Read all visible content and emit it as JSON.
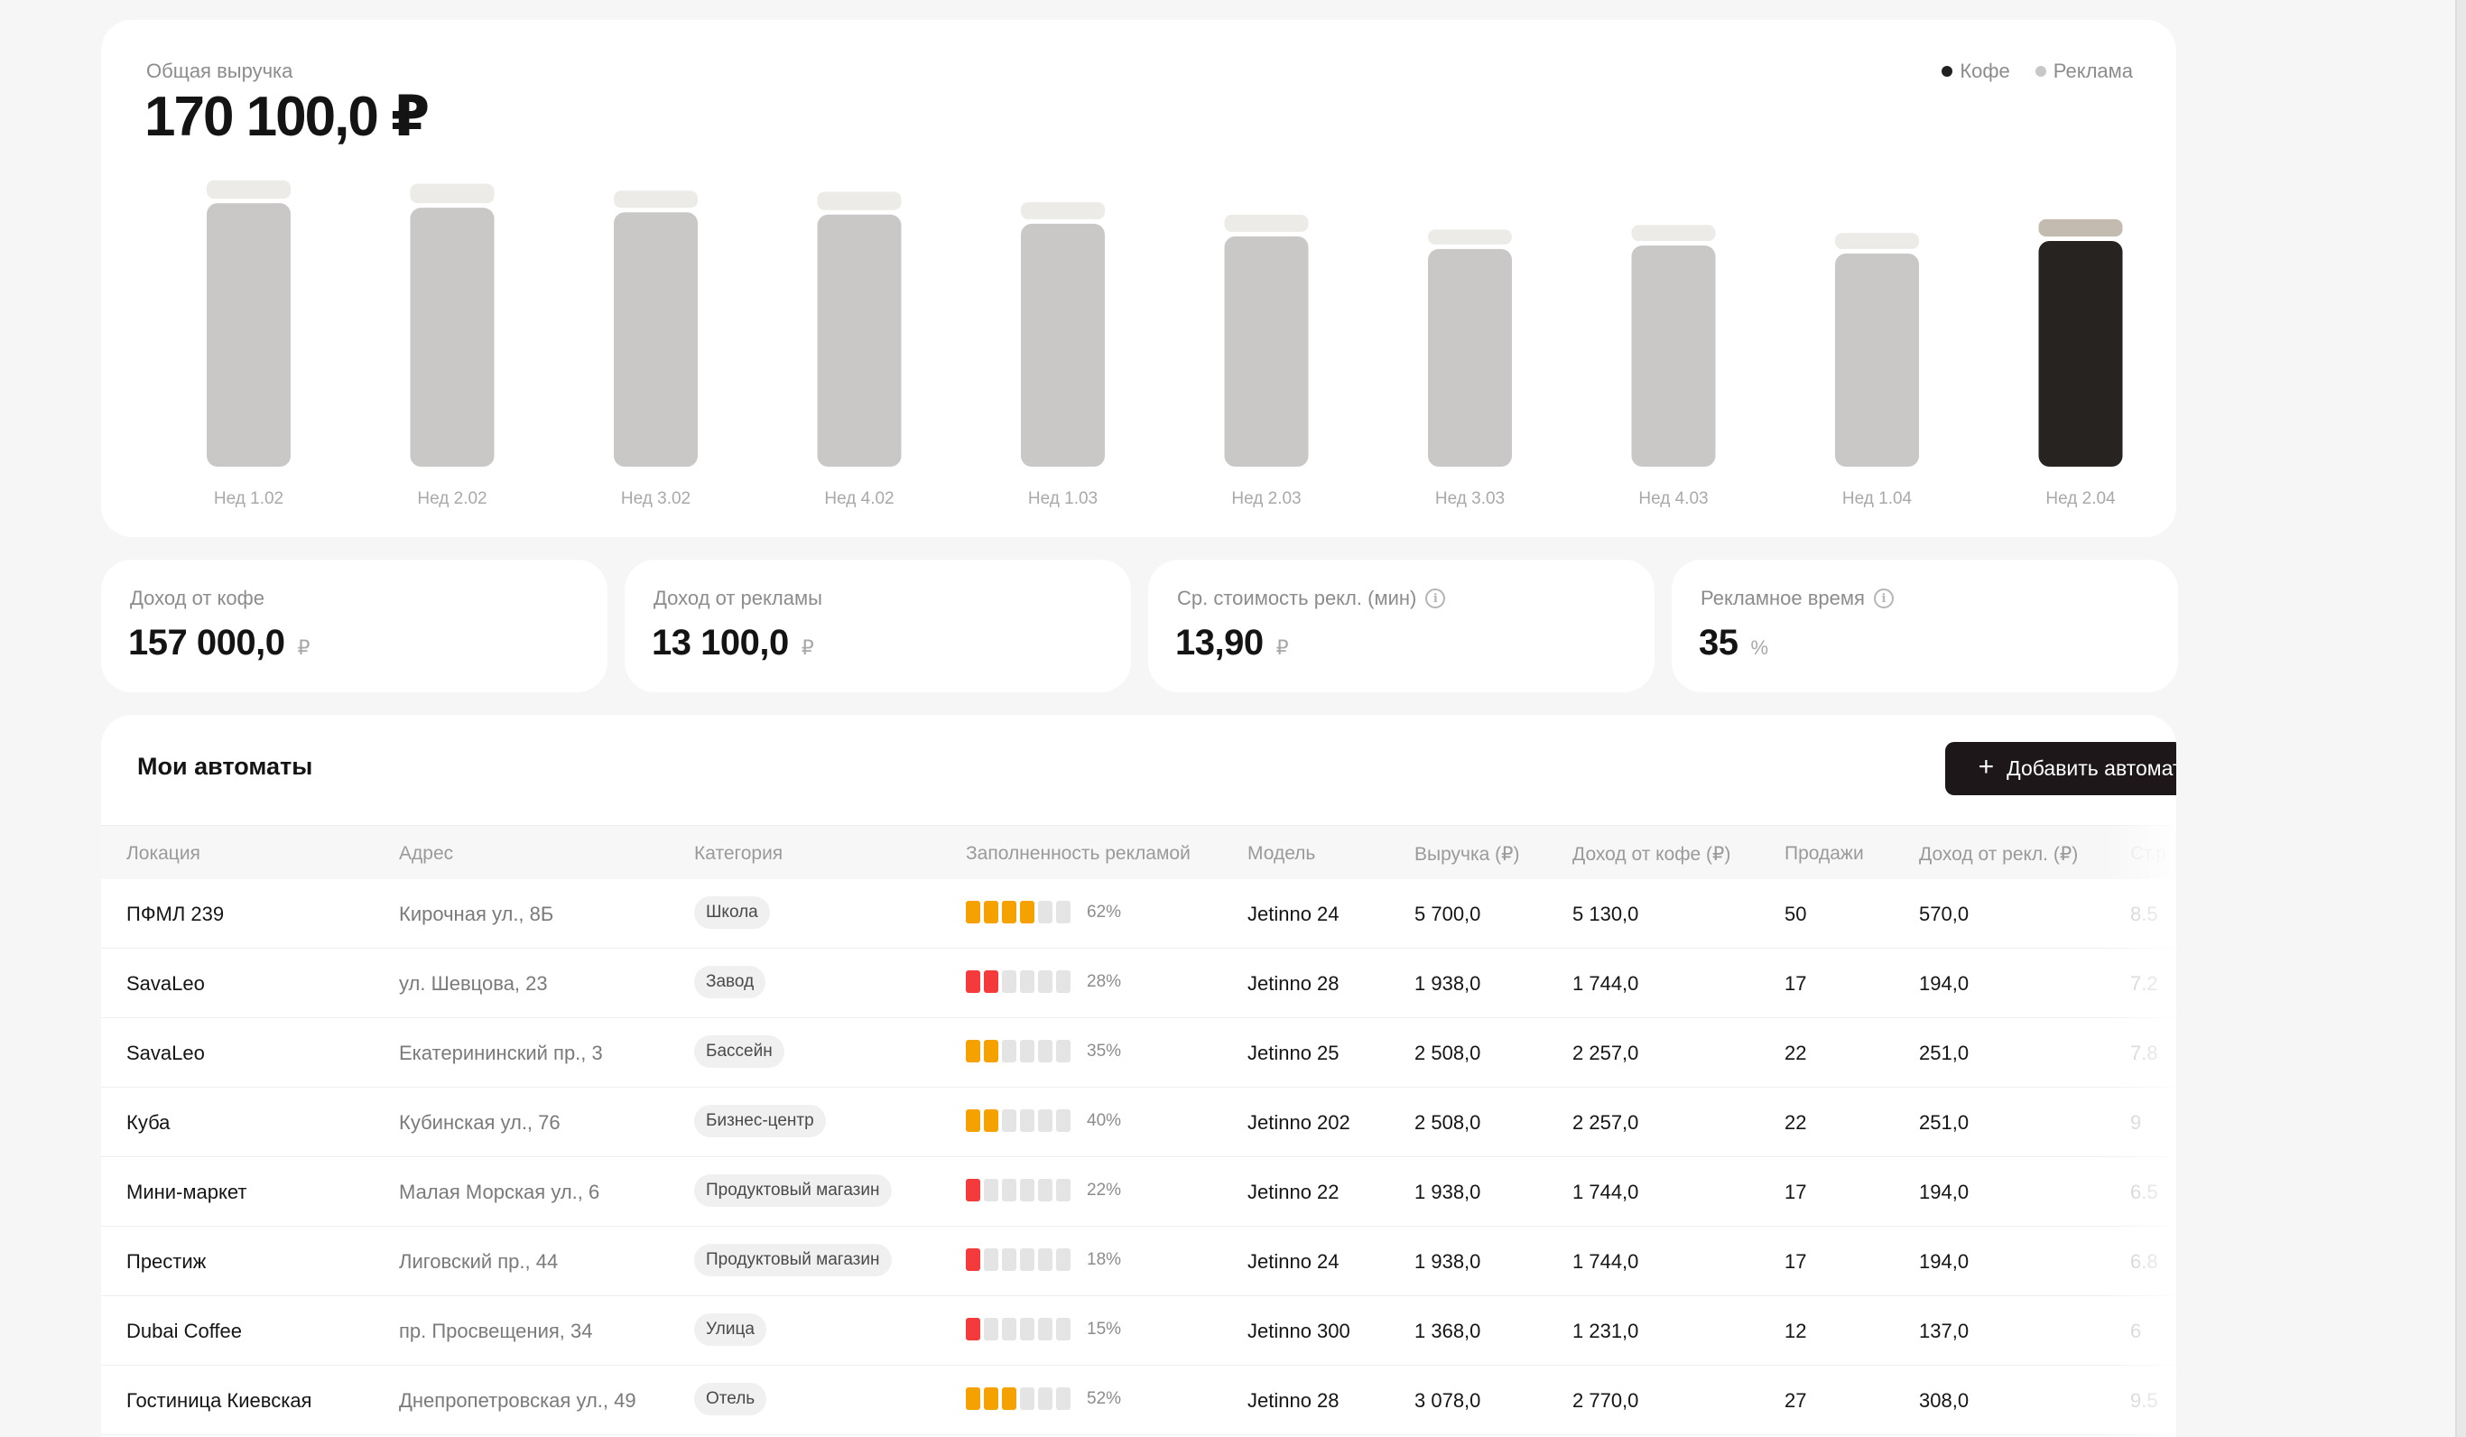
{
  "colors": {
    "coffee_bar": "#c9c8c7",
    "coffee_bar_active": "#272320",
    "ads_bar": "#ecebe8",
    "ads_bar_active": "#c3bbb0",
    "legend_coffee": "#221f1f",
    "legend_ads": "#c7c7c7",
    "fill_orange": "#f5a100",
    "fill_red": "#f43a3a",
    "fill_empty": "#e4e4e4"
  },
  "revenue": {
    "label": "Общая выручка",
    "total": "170 100,0 ₽",
    "legend": [
      {
        "name": "Кофе",
        "icon": "dot-icon"
      },
      {
        "name": "Реклама",
        "icon": "dot-icon"
      }
    ]
  },
  "chart_data": {
    "type": "bar",
    "stacked": true,
    "categories": [
      "Нед 1.02",
      "Нед 2.02",
      "Нед 3.02",
      "Нед 4.02",
      "Нед 1.03",
      "Нед 2.03",
      "Нед 3.03",
      "Нед 4.03",
      "Нед 1.04",
      "Нед 2.04"
    ],
    "series": [
      {
        "name": "Кофе",
        "values": [
          230,
          226,
          222,
          220,
          212,
          201,
          190,
          193,
          186,
          197
        ]
      },
      {
        "name": "Реклама",
        "values": [
          16,
          17,
          15,
          16,
          15,
          15,
          13,
          14,
          14,
          15
        ]
      }
    ],
    "highlight_index": 9,
    "ylim": [
      0,
      260
    ]
  },
  "stats": [
    {
      "label": "Доход от кофе",
      "value": "157 000,0",
      "unit": "₽",
      "info": false
    },
    {
      "label": "Доход от рекламы",
      "value": "13 100,0",
      "unit": "₽",
      "info": false
    },
    {
      "label": "Ср. стоимость рекл. (мин)",
      "value": "13,90",
      "unit": "₽",
      "info": true
    },
    {
      "label": "Рекламное время",
      "value": "35",
      "unit": "%",
      "info": true
    }
  ],
  "machines": {
    "title": "Мои автоматы",
    "add_button": "Добавить автомат",
    "columns": [
      "Локация",
      "Адрес",
      "Категория",
      "Заполненность рекламой",
      "Модель",
      "Выручка (₽)",
      "Доход от кофе (₽)",
      "Продажи",
      "Доход от рекл. (₽)",
      "Ст.р"
    ],
    "rows": [
      {
        "location": "ПФМЛ 239",
        "address": "Кирочная ул., 8Б",
        "category": "Школа",
        "fill_pct": 62,
        "fill_label": "62%",
        "fill_color": "orange",
        "filled_segments": 4,
        "model": "Jetinno 24",
        "revenue": "5 700,0",
        "coffee": "5 130,0",
        "sales": "50",
        "ads": "570,0",
        "extra": "8.5"
      },
      {
        "location": "SavaLeo",
        "address": "ул. Шевцова, 23",
        "category": "Завод",
        "fill_pct": 28,
        "fill_label": "28%",
        "fill_color": "red",
        "filled_segments": 2,
        "model": "Jetinno 28",
        "revenue": "1 938,0",
        "coffee": "1 744,0",
        "sales": "17",
        "ads": "194,0",
        "extra": "7.2"
      },
      {
        "location": "SavaLeo",
        "address": "Екатерининский пр., 3",
        "category": "Бассейн",
        "fill_pct": 35,
        "fill_label": "35%",
        "fill_color": "orange",
        "filled_segments": 2,
        "model": "Jetinno 25",
        "revenue": "2 508,0",
        "coffee": "2 257,0",
        "sales": "22",
        "ads": "251,0",
        "extra": "7.8"
      },
      {
        "location": "Куба",
        "address": "Кубинская ул., 76",
        "category": "Бизнес-центр",
        "fill_pct": 40,
        "fill_label": "40%",
        "fill_color": "orange",
        "filled_segments": 2,
        "model": "Jetinno 202",
        "revenue": "2 508,0",
        "coffee": "2 257,0",
        "sales": "22",
        "ads": "251,0",
        "extra": "9"
      },
      {
        "location": "Мини-маркет",
        "address": "Малая Морская ул., 6",
        "category": "Продуктовый магазин",
        "fill_pct": 22,
        "fill_label": "22%",
        "fill_color": "red",
        "filled_segments": 1,
        "model": "Jetinno 22",
        "revenue": "1 938,0",
        "coffee": "1 744,0",
        "sales": "17",
        "ads": "194,0",
        "extra": "6.5"
      },
      {
        "location": "Престиж",
        "address": "Лиговский пр., 44",
        "category": "Продуктовый магазин",
        "fill_pct": 18,
        "fill_label": "18%",
        "fill_color": "red",
        "filled_segments": 1,
        "model": "Jetinno 24",
        "revenue": "1 938,0",
        "coffee": "1 744,0",
        "sales": "17",
        "ads": "194,0",
        "extra": "6.8"
      },
      {
        "location": "Dubai Coffee",
        "address": "пр. Просвещения, 34",
        "category": "Улица",
        "fill_pct": 15,
        "fill_label": "15%",
        "fill_color": "red",
        "filled_segments": 1,
        "model": "Jetinno 300",
        "revenue": "1 368,0",
        "coffee": "1 231,0",
        "sales": "12",
        "ads": "137,0",
        "extra": "6"
      },
      {
        "location": "Гостиница Киевская",
        "address": "Днепропетровская ул., 49",
        "category": "Отель",
        "fill_pct": 52,
        "fill_label": "52%",
        "fill_color": "orange",
        "filled_segments": 3,
        "model": "Jetinno 28",
        "revenue": "3 078,0",
        "coffee": "2 770,0",
        "sales": "27",
        "ads": "308,0",
        "extra": "9.5"
      }
    ]
  }
}
